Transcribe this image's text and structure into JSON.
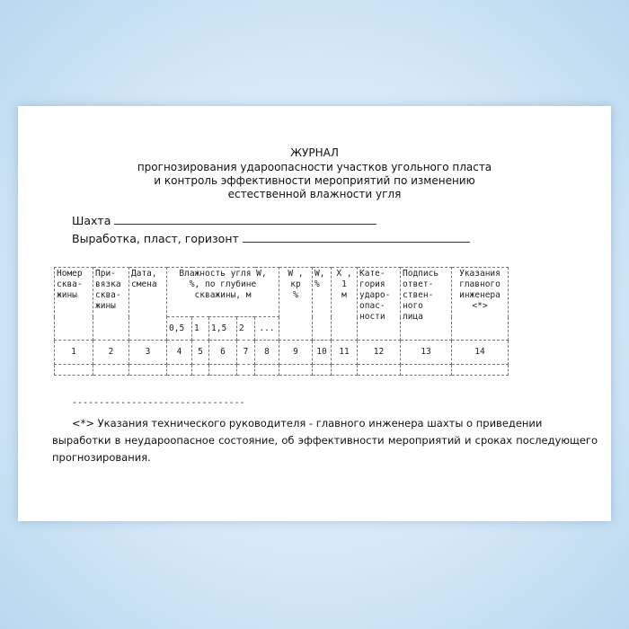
{
  "title": {
    "heading": "ЖУРНАЛ",
    "line1": "прогнозирования удароопасности участков угольного пласта",
    "line2": "и контроль эффективности мероприятий по изменению",
    "line3": "естественной влажности угля"
  },
  "fields": {
    "mine_label": "Шахта",
    "working_label": "Выработка, пласт, горизонт"
  },
  "table": {
    "headers": {
      "col1": "Номер\nсква-\nжины",
      "col2": "При-\nвязка\nсква-\nжины",
      "col3": "Дата,\nсмена",
      "moisture": "Влажность угля W,\n%, по глубине\nскважины, м",
      "col9": "W  ,\nкр\n%",
      "col10": "W,\n%",
      "col11": "X ,\n1\nм",
      "col12": "Кате-\nгория\nударо-\nопас-\nности",
      "col13": "Подпись\nответ-\nствен-\nного\nлица",
      "col14": "Указания\nглавного\nинженера\n<*>"
    },
    "depths": [
      "0,5",
      "1",
      "1,5",
      "2",
      "..."
    ],
    "numbers": [
      "1",
      "2",
      "3",
      "4",
      "5",
      "6",
      "7",
      "8",
      "9",
      "10",
      "11",
      "12",
      "13",
      "14"
    ]
  },
  "footnote": {
    "separator": "--------------------------------",
    "line1": "<*> Указания технического руководителя - главного инженера шахты о приведении",
    "rest": "выработки в неудароопасное состояние, об эффективности мероприятий и сроках последующего прогнозирования."
  }
}
